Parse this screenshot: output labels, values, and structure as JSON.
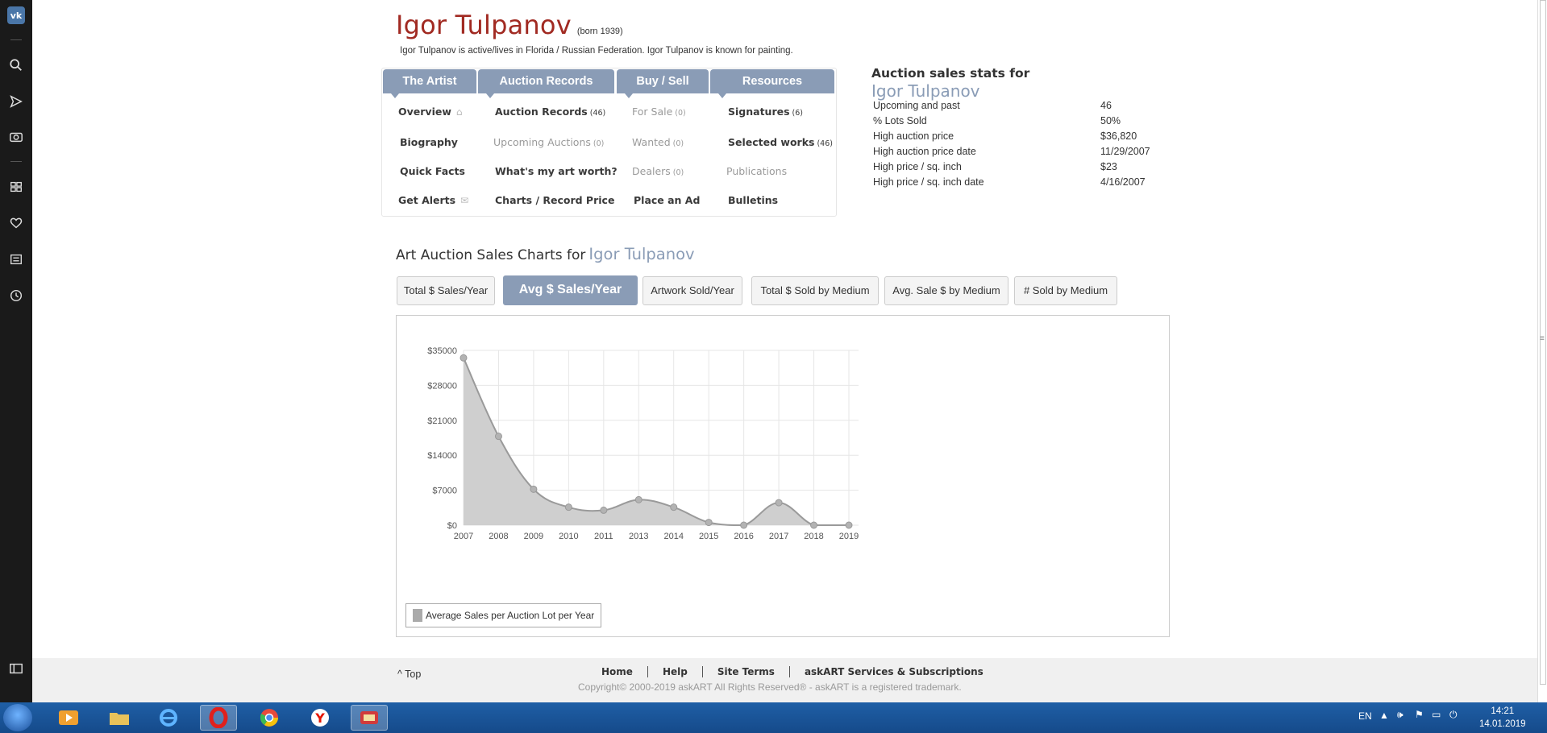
{
  "artist": {
    "name": "Igor Tulpanov",
    "born": "(born 1939)",
    "description": "Igor Tulpanov is active/lives in Florida / Russian Federation.  Igor Tulpanov is known for painting."
  },
  "nav": {
    "tabs": [
      "The Artist",
      "Auction Records",
      "Buy / Sell",
      "Resources"
    ],
    "col1": [
      {
        "label": "Overview",
        "icon": "home-icon"
      },
      {
        "label": "Biography"
      },
      {
        "label": "Quick Facts"
      },
      {
        "label": "Get Alerts",
        "icon": "envelope-icon"
      }
    ],
    "col2": [
      {
        "label": "Auction Records",
        "count": "(46)"
      },
      {
        "label": "Upcoming Auctions",
        "count": "(0)"
      },
      {
        "label": "What's my art worth?"
      },
      {
        "label": "Charts / Record Price"
      }
    ],
    "col3": [
      {
        "label": "For Sale",
        "count": "(0)"
      },
      {
        "label": "Wanted",
        "count": "(0)"
      },
      {
        "label": "Dealers",
        "count": "(0)"
      },
      {
        "label": "Place an Ad"
      }
    ],
    "col4": [
      {
        "label": "Signatures",
        "count": "(6)"
      },
      {
        "label": "Selected works",
        "count": "(46)"
      },
      {
        "label": "Publications"
      },
      {
        "label": "Bulletins"
      }
    ]
  },
  "stats": {
    "heading": "Auction sales stats for",
    "name": "Igor Tulpanov",
    "rows": [
      {
        "label": "Upcoming and past",
        "value": "46"
      },
      {
        "label": "% Lots Sold",
        "value": "50%"
      },
      {
        "label": "High auction price",
        "value": "$36,820"
      },
      {
        "label": "High auction price date",
        "value": "11/29/2007"
      },
      {
        "label": "High price / sq. inch",
        "value": "$23"
      },
      {
        "label": "High price / sq. inch date",
        "value": "4/16/2007"
      }
    ]
  },
  "charts": {
    "heading": "Art Auction Sales Charts for",
    "name": "Igor Tulpanov",
    "buttons": [
      "Total $ Sales/Year",
      "Avg $ Sales/Year",
      "Artwork Sold/Year",
      "Total $ Sold by Medium",
      "Avg. Sale $ by Medium",
      "# Sold by Medium"
    ],
    "active_button": "Avg $ Sales/Year"
  },
  "chart_data": {
    "type": "area",
    "x": [
      "2007",
      "2008",
      "2009",
      "2010",
      "2011",
      "2013",
      "2014",
      "2015",
      "2016",
      "2017",
      "2018",
      "2019"
    ],
    "series": [
      {
        "name": "Average Sales per Auction Lot per Year",
        "values": [
          33500,
          17800,
          7200,
          3600,
          3000,
          5100,
          3600,
          550,
          0,
          4500,
          0,
          0
        ]
      }
    ],
    "yticks": [
      "$0",
      "$7000",
      "$14000",
      "$21000",
      "$28000",
      "$35000"
    ],
    "ylim": [
      0,
      35000
    ],
    "grid": true,
    "legend": "bottom-left",
    "colors": {
      "fill": "#cfcfcf",
      "line": "#9a9a9a",
      "point": "#b3b3b3"
    }
  },
  "footer": {
    "top_link": "^ Top",
    "links": [
      "Home",
      "Help",
      "Site Terms",
      "askART Services & Subscriptions"
    ],
    "copyright": "Copyright© 2000-2019 askART All Rights Reserved® - askART is a registered trademark."
  },
  "taskbar": {
    "lang": "EN",
    "time": "14:21",
    "date": "14.01.2019",
    "apps": [
      "media-player-icon",
      "folder-icon",
      "internet-explorer-icon",
      "opera-icon",
      "chrome-icon",
      "yandex-icon",
      "app-icon"
    ]
  },
  "sidebar_icons": [
    "vk-logo",
    "search-icon",
    "send-icon",
    "camera-icon",
    "apps-icon",
    "heart-icon",
    "news-icon",
    "history-icon",
    "panel-icon"
  ]
}
